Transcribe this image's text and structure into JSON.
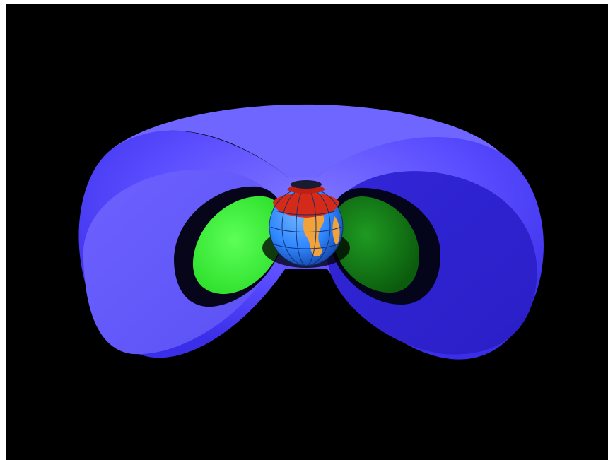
{
  "scene": {
    "background_color": "#000000",
    "frame_color": "#ffffff",
    "subject": "earth-radiation-belts",
    "colors": {
      "outer_belt": "#5a4dff",
      "outer_belt_dark": "#2418c8",
      "inner_belt": "#3dff3a",
      "inner_belt_dark": "#0f7a12",
      "polar_cap": "#d42a1a",
      "ocean": "#2f86ff",
      "land": "#f2a23a"
    }
  }
}
